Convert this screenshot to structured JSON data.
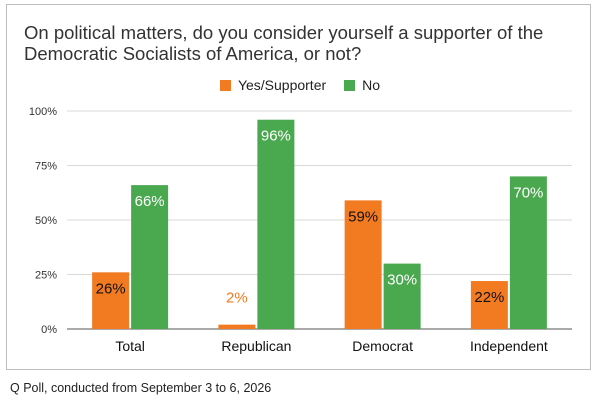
{
  "title": "On political matters, do you consider yourself a supporter of the Democratic Socialists of America, or not?",
  "source_note": "Q Poll, conducted from September 3 to 6, 2026",
  "colors": {
    "yes": "#f27b21",
    "no": "#4aa84f",
    "grid": "#d9d9d9",
    "axis": "#555555"
  },
  "chart_data": {
    "type": "bar",
    "title": "On political matters, do you consider yourself a supporter of the Democratic Socialists of America, or not?",
    "categories": [
      "Total",
      "Republican",
      "Democrat",
      "Independent"
    ],
    "series": [
      {
        "name": "Yes/Supporter",
        "values": [
          26,
          2,
          59,
          22
        ],
        "labels": [
          "26%",
          "2%",
          "59%",
          "22%"
        ]
      },
      {
        "name": "No",
        "values": [
          66,
          96,
          30,
          70
        ],
        "labels": [
          "66%",
          "96%",
          "30%",
          "70%"
        ]
      }
    ],
    "ylim": [
      0,
      100
    ],
    "yticks": [
      0,
      25,
      50,
      75,
      100
    ],
    "ytick_labels": [
      "0%",
      "25%",
      "50%",
      "75%",
      "100%"
    ],
    "legend": "top-center",
    "grid": true,
    "xlabel": "",
    "ylabel": ""
  }
}
